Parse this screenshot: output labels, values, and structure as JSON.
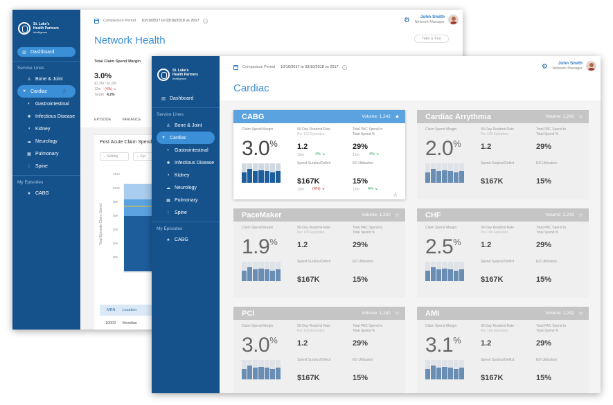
{
  "back": {
    "logo": {
      "line1": "St. Luke's",
      "line2": "Health Partners",
      "line3": "Intelligence"
    },
    "nav": {
      "dashboard": "Dashboard",
      "service_lines_label": "Service Lines",
      "items": [
        "Bone & Joint",
        "Cardiac",
        "Gastrointestinal",
        "Infectious Disease",
        "Kidney",
        "Neurology",
        "Pulmonary",
        "Spine"
      ],
      "active": "Cardiac",
      "my_episodes_label": "My Episodes",
      "episodes": [
        "CABG"
      ]
    },
    "topbar": {
      "period_label": "Comparison Period",
      "period_value": "10/10/2017 to 03/10/2018 vs 2017"
    },
    "user": {
      "name": "John Smith",
      "role": "Network Manager"
    },
    "title": "Network Health",
    "tour_label": "Take a Tour",
    "kpi": {
      "label": "Total Claim Spend Margin",
      "value": "3.0%",
      "sub": "$1.3M / $1.8M",
      "row1_left": "12m",
      "row1_delta": "(4%)",
      "row2_left": "Target",
      "row2_value": "4.2%"
    },
    "tabs": [
      "EPISODE",
      "VARIANCE"
    ],
    "chart": {
      "title": "Post Acute Claim Spend",
      "filter1": "Setting",
      "filter2": "Epi",
      "ylabel": "Total Episode Claim Spend",
      "ticks": [
        "$12K",
        "$10K",
        "$8K",
        "$6K",
        "$4K",
        "$2K",
        "$0K"
      ]
    },
    "table": {
      "headers": [
        "MRN",
        "Location"
      ],
      "row": [
        "10002",
        "Meridian"
      ]
    }
  },
  "front": {
    "logo": {
      "line1": "St. Luke's",
      "line2": "Health Partners",
      "line3": "Intelligence"
    },
    "nav": {
      "dashboard": "Dashboard",
      "service_lines_label": "Service Lines",
      "items": [
        "Bone & Joint",
        "Cardiac",
        "Gastrointestinal",
        "Infectious Disease",
        "Kidney",
        "Neurology",
        "Pulmonary",
        "Spine"
      ],
      "active": "Cardiac",
      "my_episodes_label": "My Episodes",
      "episodes": [
        "CABG"
      ]
    },
    "topbar": {
      "period_label": "Comparison Period",
      "period_value": "10/10/2017 to 03/10/2018 vs 2017"
    },
    "user": {
      "name": "John Smith",
      "role": "Network Manager"
    },
    "title": "Cardiac",
    "labels": {
      "claim_spend_margin": "Claim Spend Margin",
      "readmit_rate": "90-Day Readmit Rate",
      "readmit_sub": "Per 100 Episodes",
      "pac_spend": "Total PAC Spend to",
      "pac_spend2": "Total Spend %",
      "surplus": "Spend Surplus/Deficit",
      "ed_util": "ED Utilization"
    },
    "cards": [
      {
        "title": "CABG",
        "volume": "Volume: 1,242",
        "margin": "3.0",
        "readmit": "1.2",
        "pac": "29%",
        "surplus": "$167K",
        "ed": "15%",
        "active": true,
        "readmit_12m": "12m",
        "readmit_delta": "4%",
        "pac_12m": "12m",
        "pac_delta": "4%",
        "surplus_12m": "12m",
        "surplus_delta": "(4%)",
        "ed_12m": "12m",
        "ed_delta": "4%",
        "bars": [
          0.55,
          0.7,
          0.6,
          0.65,
          0.6,
          0.55,
          0.6
        ]
      },
      {
        "title": "Cardiac Arrythmia",
        "volume": "Volume: 1,242",
        "margin": "2.0",
        "readmit": "1.2",
        "pac": "29%",
        "surplus": "$167K",
        "ed": "15%",
        "active": false,
        "bars": [
          0.55,
          0.7,
          0.6,
          0.65,
          0.6,
          0.55,
          0.6
        ]
      },
      {
        "title": "PaceMaker",
        "volume": "Volume: 1,242",
        "margin": "1.9",
        "readmit": "1.2",
        "pac": "29%",
        "surplus": "$167K",
        "ed": "15%",
        "active": false,
        "bars": [
          0.55,
          0.7,
          0.6,
          0.65,
          0.6,
          0.55,
          0.6
        ]
      },
      {
        "title": "CHF",
        "volume": "Volume: 1,242",
        "margin": "2.5",
        "readmit": "1.2",
        "pac": "29%",
        "surplus": "$167K",
        "ed": "15%",
        "active": false,
        "bars": [
          0.55,
          0.7,
          0.6,
          0.65,
          0.6,
          0.55,
          0.6
        ]
      },
      {
        "title": "PCI",
        "volume": "Volume: 1,242",
        "margin": "3.0",
        "readmit": "1.2",
        "pac": "29%",
        "surplus": "$167K",
        "ed": "15%",
        "active": false,
        "bars": [
          0.55,
          0.7,
          0.6,
          0.65,
          0.6,
          0.55,
          0.6
        ]
      },
      {
        "title": "AMI",
        "volume": "Volume: 1,242",
        "margin": "3.1",
        "readmit": "1.2",
        "pac": "29%",
        "surplus": "$167K",
        "ed": "15%",
        "active": false,
        "bars": [
          0.55,
          0.7,
          0.6,
          0.65,
          0.6,
          0.55,
          0.6
        ]
      }
    ]
  },
  "colors": {
    "sidebar": "#15528c",
    "accent": "#3a8fd7",
    "card_active_header": "#5aa2e0",
    "card_header": "#c5c5c5"
  }
}
